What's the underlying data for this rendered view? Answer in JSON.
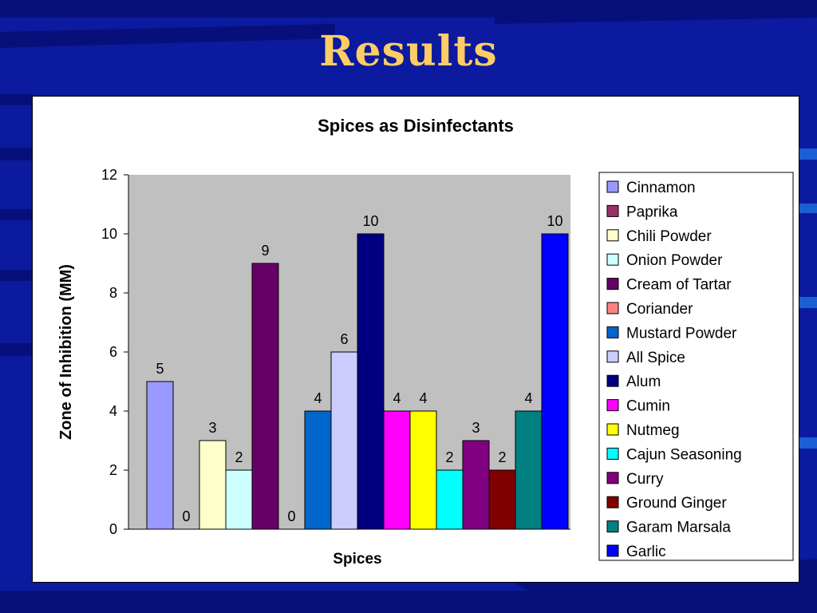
{
  "slide": {
    "title": "Results"
  },
  "colors": {
    "background": "#0b1a9e",
    "title": "#ffcc66",
    "plot_area": "#c0c0c0"
  },
  "chart_data": {
    "type": "bar",
    "title": "Spices as Disinfectants",
    "xlabel": "Spices",
    "ylabel": "Zone of Inhibition (MM)",
    "ylim": [
      0,
      12
    ],
    "yticks": [
      0,
      2,
      4,
      6,
      8,
      10,
      12
    ],
    "grid": false,
    "legend_position": "right",
    "series": [
      {
        "name": "Cinnamon",
        "value": 5,
        "color": "#9999ff"
      },
      {
        "name": "Paprika",
        "value": 0,
        "color": "#993366"
      },
      {
        "name": "Chili Powder",
        "value": 3,
        "color": "#ffffcc"
      },
      {
        "name": "Onion Powder",
        "value": 2,
        "color": "#ccffff"
      },
      {
        "name": "Cream of Tartar",
        "value": 9,
        "color": "#660066"
      },
      {
        "name": "Coriander",
        "value": 0,
        "color": "#ff8080"
      },
      {
        "name": "Mustard Powder",
        "value": 4,
        "color": "#0066cc"
      },
      {
        "name": "All Spice",
        "value": 6,
        "color": "#ccccff"
      },
      {
        "name": "Alum",
        "value": 10,
        "color": "#000080"
      },
      {
        "name": "Cumin",
        "value": 4,
        "color": "#ff00ff"
      },
      {
        "name": "Nutmeg",
        "value": 4,
        "color": "#ffff00"
      },
      {
        "name": "Cajun Seasoning",
        "value": 2,
        "color": "#00ffff"
      },
      {
        "name": "Curry",
        "value": 3,
        "color": "#800080"
      },
      {
        "name": "Ground Ginger",
        "value": 2,
        "color": "#800000"
      },
      {
        "name": "Garam Marsala",
        "value": 4,
        "color": "#008080"
      },
      {
        "name": "Garlic",
        "value": 10,
        "color": "#0000ff"
      }
    ]
  }
}
